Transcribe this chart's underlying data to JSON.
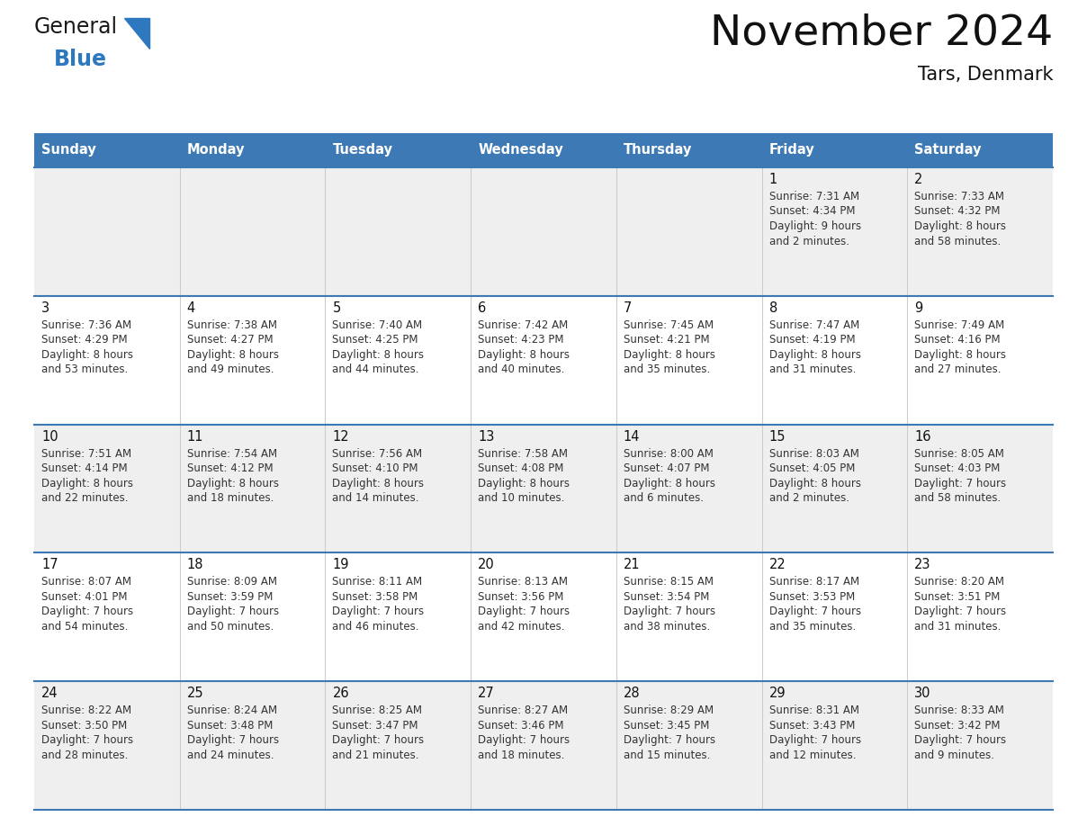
{
  "title": "November 2024",
  "subtitle": "Tars, Denmark",
  "days_of_week": [
    "Sunday",
    "Monday",
    "Tuesday",
    "Wednesday",
    "Thursday",
    "Friday",
    "Saturday"
  ],
  "header_bg": "#3d7ab5",
  "header_text": "#ffffff",
  "row_bg_even": "#efefef",
  "row_bg_odd": "#ffffff",
  "text_color": "#333333",
  "day_number_color": "#111111",
  "border_color": "#3d7ab5",
  "logo_general_color": "#1a1a1a",
  "logo_blue_color": "#2e78c0",
  "logo_triangle_color": "#2e78c0",
  "calendar_data": [
    [
      {
        "day": "",
        "sunrise": "",
        "sunset": "",
        "daylight": ""
      },
      {
        "day": "",
        "sunrise": "",
        "sunset": "",
        "daylight": ""
      },
      {
        "day": "",
        "sunrise": "",
        "sunset": "",
        "daylight": ""
      },
      {
        "day": "",
        "sunrise": "",
        "sunset": "",
        "daylight": ""
      },
      {
        "day": "",
        "sunrise": "",
        "sunset": "",
        "daylight": ""
      },
      {
        "day": "1",
        "sunrise": "7:31 AM",
        "sunset": "4:34 PM",
        "daylight": "9 hours\nand 2 minutes."
      },
      {
        "day": "2",
        "sunrise": "7:33 AM",
        "sunset": "4:32 PM",
        "daylight": "8 hours\nand 58 minutes."
      }
    ],
    [
      {
        "day": "3",
        "sunrise": "7:36 AM",
        "sunset": "4:29 PM",
        "daylight": "8 hours\nand 53 minutes."
      },
      {
        "day": "4",
        "sunrise": "7:38 AM",
        "sunset": "4:27 PM",
        "daylight": "8 hours\nand 49 minutes."
      },
      {
        "day": "5",
        "sunrise": "7:40 AM",
        "sunset": "4:25 PM",
        "daylight": "8 hours\nand 44 minutes."
      },
      {
        "day": "6",
        "sunrise": "7:42 AM",
        "sunset": "4:23 PM",
        "daylight": "8 hours\nand 40 minutes."
      },
      {
        "day": "7",
        "sunrise": "7:45 AM",
        "sunset": "4:21 PM",
        "daylight": "8 hours\nand 35 minutes."
      },
      {
        "day": "8",
        "sunrise": "7:47 AM",
        "sunset": "4:19 PM",
        "daylight": "8 hours\nand 31 minutes."
      },
      {
        "day": "9",
        "sunrise": "7:49 AM",
        "sunset": "4:16 PM",
        "daylight": "8 hours\nand 27 minutes."
      }
    ],
    [
      {
        "day": "10",
        "sunrise": "7:51 AM",
        "sunset": "4:14 PM",
        "daylight": "8 hours\nand 22 minutes."
      },
      {
        "day": "11",
        "sunrise": "7:54 AM",
        "sunset": "4:12 PM",
        "daylight": "8 hours\nand 18 minutes."
      },
      {
        "day": "12",
        "sunrise": "7:56 AM",
        "sunset": "4:10 PM",
        "daylight": "8 hours\nand 14 minutes."
      },
      {
        "day": "13",
        "sunrise": "7:58 AM",
        "sunset": "4:08 PM",
        "daylight": "8 hours\nand 10 minutes."
      },
      {
        "day": "14",
        "sunrise": "8:00 AM",
        "sunset": "4:07 PM",
        "daylight": "8 hours\nand 6 minutes."
      },
      {
        "day": "15",
        "sunrise": "8:03 AM",
        "sunset": "4:05 PM",
        "daylight": "8 hours\nand 2 minutes."
      },
      {
        "day": "16",
        "sunrise": "8:05 AM",
        "sunset": "4:03 PM",
        "daylight": "7 hours\nand 58 minutes."
      }
    ],
    [
      {
        "day": "17",
        "sunrise": "8:07 AM",
        "sunset": "4:01 PM",
        "daylight": "7 hours\nand 54 minutes."
      },
      {
        "day": "18",
        "sunrise": "8:09 AM",
        "sunset": "3:59 PM",
        "daylight": "7 hours\nand 50 minutes."
      },
      {
        "day": "19",
        "sunrise": "8:11 AM",
        "sunset": "3:58 PM",
        "daylight": "7 hours\nand 46 minutes."
      },
      {
        "day": "20",
        "sunrise": "8:13 AM",
        "sunset": "3:56 PM",
        "daylight": "7 hours\nand 42 minutes."
      },
      {
        "day": "21",
        "sunrise": "8:15 AM",
        "sunset": "3:54 PM",
        "daylight": "7 hours\nand 38 minutes."
      },
      {
        "day": "22",
        "sunrise": "8:17 AM",
        "sunset": "3:53 PM",
        "daylight": "7 hours\nand 35 minutes."
      },
      {
        "day": "23",
        "sunrise": "8:20 AM",
        "sunset": "3:51 PM",
        "daylight": "7 hours\nand 31 minutes."
      }
    ],
    [
      {
        "day": "24",
        "sunrise": "8:22 AM",
        "sunset": "3:50 PM",
        "daylight": "7 hours\nand 28 minutes."
      },
      {
        "day": "25",
        "sunrise": "8:24 AM",
        "sunset": "3:48 PM",
        "daylight": "7 hours\nand 24 minutes."
      },
      {
        "day": "26",
        "sunrise": "8:25 AM",
        "sunset": "3:47 PM",
        "daylight": "7 hours\nand 21 minutes."
      },
      {
        "day": "27",
        "sunrise": "8:27 AM",
        "sunset": "3:46 PM",
        "daylight": "7 hours\nand 18 minutes."
      },
      {
        "day": "28",
        "sunrise": "8:29 AM",
        "sunset": "3:45 PM",
        "daylight": "7 hours\nand 15 minutes."
      },
      {
        "day": "29",
        "sunrise": "8:31 AM",
        "sunset": "3:43 PM",
        "daylight": "7 hours\nand 12 minutes."
      },
      {
        "day": "30",
        "sunrise": "8:33 AM",
        "sunset": "3:42 PM",
        "daylight": "7 hours\nand 9 minutes."
      }
    ]
  ]
}
